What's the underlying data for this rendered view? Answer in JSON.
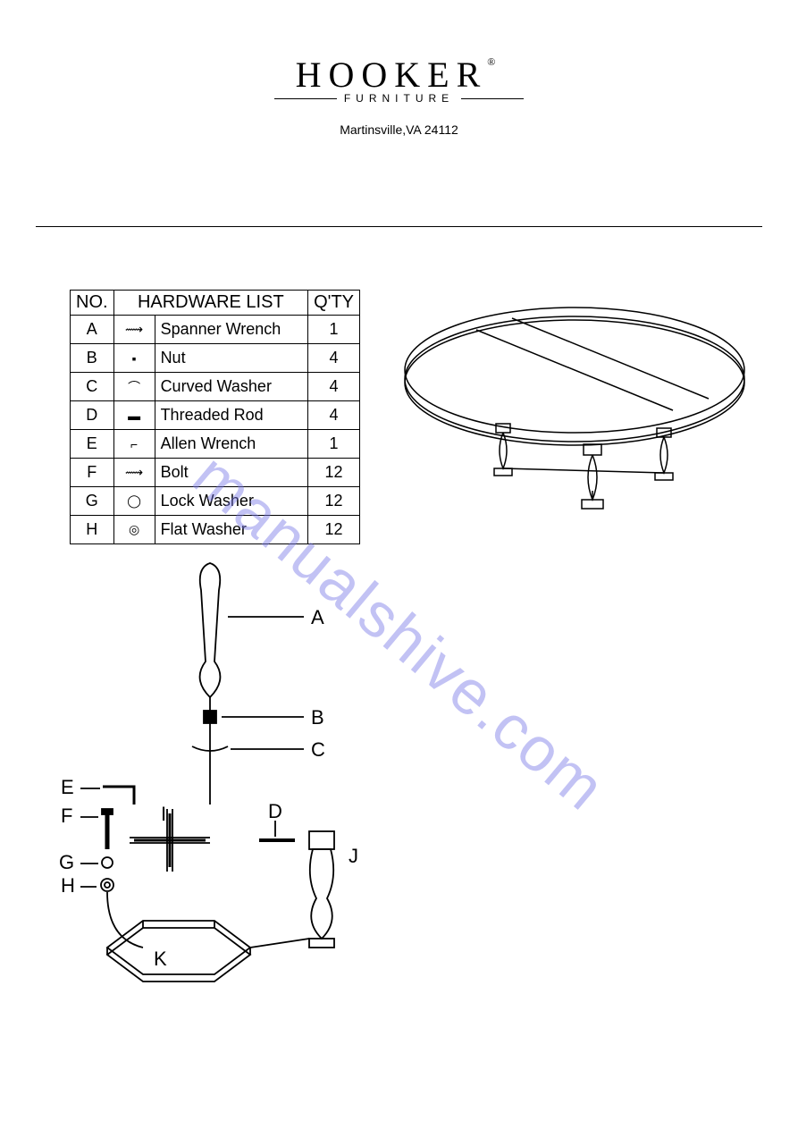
{
  "brand": {
    "name": "HOOKER",
    "registered": "®",
    "subtitle": "FURNITURE"
  },
  "address": "Martinsville,VA 24112",
  "table": {
    "headers": {
      "no": "NO.",
      "list": "HARDWARE LIST",
      "qty": "Q'TY"
    },
    "rows": [
      {
        "no": "A",
        "name": "Spanner Wrench",
        "qty": "1"
      },
      {
        "no": "B",
        "name": "Nut",
        "qty": "4"
      },
      {
        "no": "C",
        "name": "Curved Washer",
        "qty": "4"
      },
      {
        "no": "D",
        "name": "Threaded Rod",
        "qty": "4"
      },
      {
        "no": "E",
        "name": "Allen Wrench",
        "qty": "1"
      },
      {
        "no": "F",
        "name": "Bolt",
        "qty": "12"
      },
      {
        "no": "G",
        "name": "Lock Washer",
        "qty": "12"
      },
      {
        "no": "H",
        "name": "Flat Washer",
        "qty": "12"
      }
    ]
  },
  "diagram": {
    "labels": [
      "A",
      "B",
      "C",
      "D",
      "E",
      "F",
      "G",
      "H",
      "I",
      "J",
      "K"
    ],
    "stroke": "#000000",
    "stroke_width": 1.5,
    "label_fontsize": 22
  },
  "watermark": {
    "text": "manualshive.com",
    "color": "#7a7ae8",
    "opacity": 0.45,
    "angle_deg": 40,
    "fontsize": 70
  },
  "colors": {
    "background": "#ffffff",
    "text": "#000000",
    "border": "#000000"
  }
}
